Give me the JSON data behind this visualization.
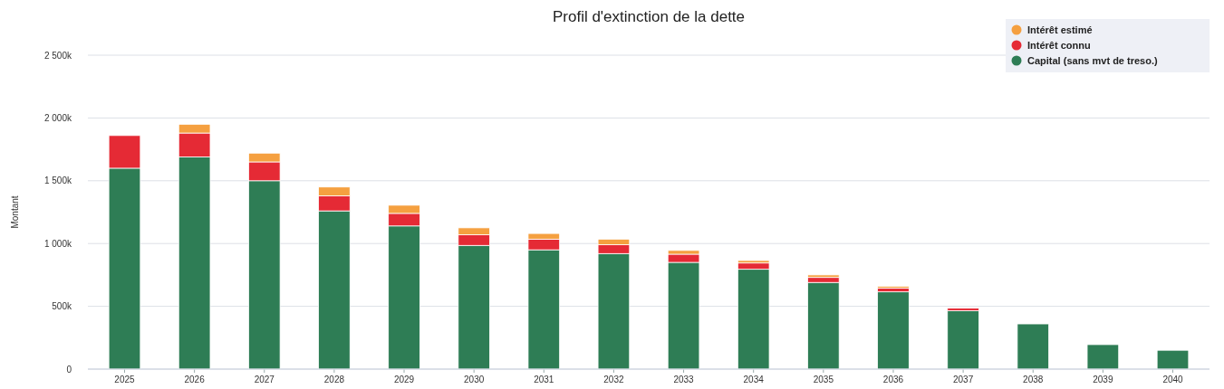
{
  "chart_data": {
    "type": "bar",
    "title": "Profil d'extinction de la dette",
    "ylabel": "Montant",
    "categories": [
      "2025",
      "2026",
      "2027",
      "2028",
      "2029",
      "2030",
      "2031",
      "2032",
      "2033",
      "2034",
      "2035",
      "2036",
      "2037",
      "2038",
      "2039",
      "2040"
    ],
    "stacked": true,
    "series": [
      {
        "name": "Capital (sans mvt de treso.)",
        "color": "#2e7d55",
        "values": [
          1600000,
          1690000,
          1500000,
          1260000,
          1140000,
          985000,
          950000,
          920000,
          850000,
          795000,
          690000,
          615000,
          465000,
          360000,
          195000,
          150000
        ]
      },
      {
        "name": "Intérêt connu",
        "color": "#e52a35",
        "values": [
          260000,
          190000,
          150000,
          120000,
          100000,
          85000,
          85000,
          70000,
          65000,
          50000,
          40000,
          30000,
          20000,
          0,
          0,
          0
        ]
      },
      {
        "name": "Intérêt estimé",
        "color": "#f5a040",
        "values": [
          0,
          70000,
          70000,
          70000,
          65000,
          55000,
          45000,
          45000,
          30000,
          20000,
          20000,
          15000,
          0,
          0,
          0,
          0
        ]
      }
    ],
    "ylim": [
      0,
      2500000
    ],
    "yticks": [
      0,
      {
        "value": 500000,
        "label": "500k"
      },
      {
        "value": 1000000,
        "label": "1 000k"
      },
      {
        "value": 1500000,
        "label": "1 500k"
      },
      {
        "value": 2000000,
        "label": "2 000k"
      },
      {
        "value": 2500000,
        "label": "2 500k"
      }
    ],
    "grid": "y",
    "legend": "top right"
  }
}
